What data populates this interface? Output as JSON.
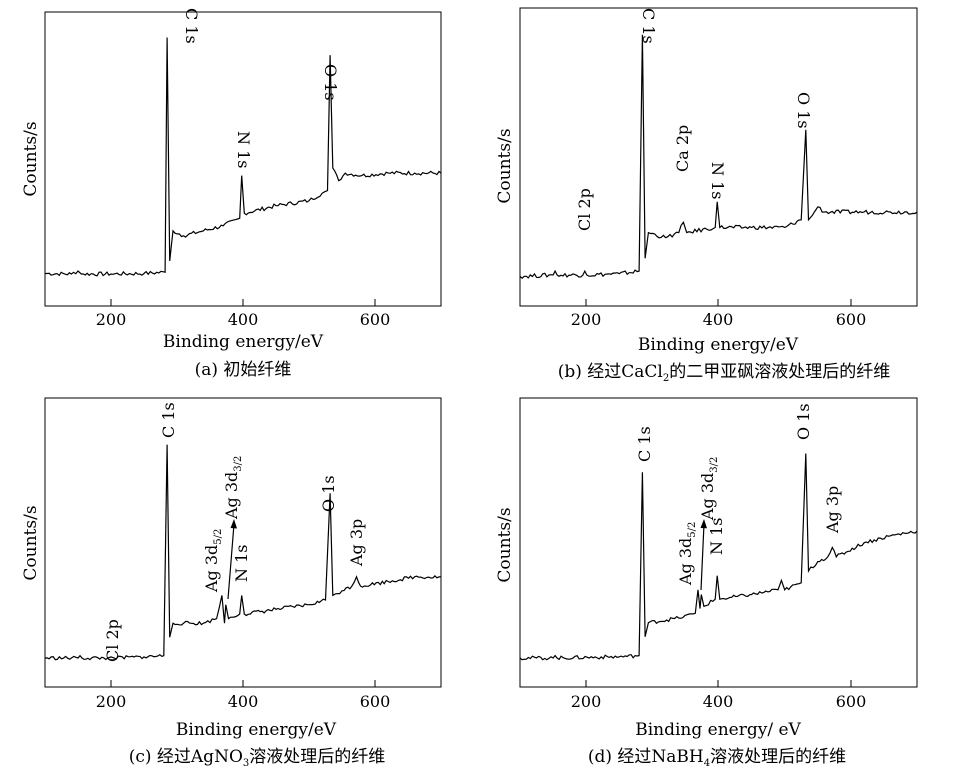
{
  "chart_data": [
    {
      "id": "a",
      "type": "line",
      "caption": "(a) 初始纤维",
      "xlabel": "Binding energy/eV",
      "ylabel": "Counts/s",
      "xlim": [
        100,
        700
      ],
      "ylim": [
        0,
        100
      ],
      "x_ticks": [
        200,
        400,
        600
      ],
      "x_tick_labels": [
        "200",
        "400",
        "600"
      ],
      "series": [
        {
          "points": [
            [
              100,
              3
            ],
            [
              140,
              2.8
            ],
            [
              150,
              4
            ],
            [
              155,
              2.8
            ],
            [
              200,
              2.8
            ],
            [
              250,
              3
            ],
            [
              282,
              3.5
            ],
            [
              285,
              97
            ],
            [
              289,
              8
            ],
            [
              294,
              20
            ],
            [
              310,
              18
            ],
            [
              340,
              20
            ],
            [
              370,
              22
            ],
            [
              395,
              25
            ],
            [
              398,
              42
            ],
            [
              402,
              27
            ],
            [
              450,
              30
            ],
            [
              500,
              32
            ],
            [
              520,
              35
            ],
            [
              528,
              36
            ],
            [
              532,
              90
            ],
            [
              536,
              45
            ],
            [
              545,
              40
            ],
            [
              555,
              43
            ],
            [
              580,
              42
            ],
            [
              620,
              43
            ],
            [
              660,
              43
            ],
            [
              700,
              43
            ]
          ]
        }
      ],
      "peaks": [
        {
          "x": 285,
          "y": 97,
          "label": "C 1s"
        },
        {
          "x": 398,
          "y": 42,
          "label": "N 1s"
        },
        {
          "x": 532,
          "y": 90,
          "label": "O 1s"
        }
      ]
    },
    {
      "id": "b",
      "type": "line",
      "caption_prefix": "(b) 经过CaCl",
      "caption_sub": "2",
      "caption_suffix": "的二甲亚砜溶液处理后的纤维",
      "xlabel": "Binding energy/eV",
      "ylabel": "Counts/s",
      "xlim": [
        100,
        700
      ],
      "ylim": [
        0,
        100
      ],
      "x_ticks": [
        200,
        400,
        600
      ],
      "x_tick_labels": [
        "200",
        "400",
        "600"
      ],
      "series": [
        {
          "points": [
            [
              100,
              3
            ],
            [
              150,
              3.5
            ],
            [
              153,
              5
            ],
            [
              156,
              3.5
            ],
            [
              195,
              3.5
            ],
            [
              198,
              5
            ],
            [
              201,
              3.5
            ],
            [
              250,
              4
            ],
            [
              280,
              5
            ],
            [
              285,
              97
            ],
            [
              289,
              10
            ],
            [
              294,
              20
            ],
            [
              320,
              18
            ],
            [
              340,
              20
            ],
            [
              347,
              24
            ],
            [
              352,
              20
            ],
            [
              395,
              22
            ],
            [
              398,
              32
            ],
            [
              402,
              22
            ],
            [
              450,
              22
            ],
            [
              500,
              22
            ],
            [
              525,
              25
            ],
            [
              532,
              60
            ],
            [
              536,
              25
            ],
            [
              545,
              28
            ],
            [
              550,
              30
            ],
            [
              560,
              28
            ],
            [
              620,
              28
            ],
            [
              660,
              28
            ],
            [
              700,
              28
            ]
          ]
        }
      ],
      "peaks": [
        {
          "x": 198,
          "y": 5,
          "label": "Cl 2p"
        },
        {
          "x": 285,
          "y": 97,
          "label": "C 1s"
        },
        {
          "x": 347,
          "y": 24,
          "label": "Ca 2p"
        },
        {
          "x": 398,
          "y": 32,
          "label": "N 1s"
        },
        {
          "x": 532,
          "y": 60,
          "label": "O 1s"
        }
      ]
    },
    {
      "id": "c",
      "type": "line",
      "caption_prefix": "(c) 经过AgNO",
      "caption_sub": "3",
      "caption_suffix": "溶液处理后的纤维",
      "xlabel": "Binding energy/eV",
      "ylabel": "Counts/s",
      "xlim": [
        100,
        700
      ],
      "ylim": [
        0,
        100
      ],
      "x_ticks": [
        200,
        400,
        600
      ],
      "x_tick_labels": [
        "200",
        "400",
        "600"
      ],
      "series": [
        {
          "points": [
            [
              100,
              3
            ],
            [
              150,
              3
            ],
            [
              153,
              4
            ],
            [
              156,
              3
            ],
            [
              195,
              3
            ],
            [
              200,
              3.5
            ],
            [
              205,
              3
            ],
            [
              250,
              3.5
            ],
            [
              280,
              4
            ],
            [
              285,
              95
            ],
            [
              289,
              12
            ],
            [
              294,
              18
            ],
            [
              310,
              18
            ],
            [
              340,
              18
            ],
            [
              360,
              20
            ],
            [
              368,
              30
            ],
            [
              372,
              18
            ],
            [
              374,
              26
            ],
            [
              378,
              20
            ],
            [
              395,
              22
            ],
            [
              398,
              30
            ],
            [
              402,
              22
            ],
            [
              450,
              24
            ],
            [
              500,
              26
            ],
            [
              525,
              28
            ],
            [
              532,
              74
            ],
            [
              536,
              30
            ],
            [
              550,
              32
            ],
            [
              565,
              34
            ],
            [
              572,
              38
            ],
            [
              578,
              34
            ],
            [
              620,
              36
            ],
            [
              660,
              38
            ],
            [
              700,
              38
            ]
          ]
        }
      ],
      "peaks": [
        {
          "x": 200,
          "y": 3.5,
          "label": "Cl 2p"
        },
        {
          "x": 285,
          "y": 95,
          "label": "C 1s"
        },
        {
          "x": 368,
          "y": 30,
          "label": "Ag 3d",
          "label_sub": "5/2"
        },
        {
          "x": 374,
          "y": 26,
          "label": "Ag 3d",
          "label_sub": "3/2"
        },
        {
          "x": 398,
          "y": 30,
          "label": "N 1s"
        },
        {
          "x": 532,
          "y": 74,
          "label": "O 1s"
        },
        {
          "x": 572,
          "y": 38,
          "label": "Ag 3p"
        }
      ]
    },
    {
      "id": "d",
      "type": "line",
      "caption_prefix": "(d) 经过NaBH",
      "caption_sub": "4",
      "caption_suffix": "溶液处理后的纤维",
      "xlabel": "Binding energy/ eV",
      "ylabel": "Counts/s",
      "xlim": [
        100,
        700
      ],
      "ylim": [
        0,
        100
      ],
      "x_ticks": [
        200,
        400,
        600
      ],
      "x_tick_labels": [
        "200",
        "400",
        "600"
      ],
      "series": [
        {
          "points": [
            [
              100,
              3
            ],
            [
              150,
              3
            ],
            [
              153,
              4
            ],
            [
              156,
              3
            ],
            [
              250,
              3.5
            ],
            [
              280,
              4
            ],
            [
              285,
              82
            ],
            [
              289,
              12
            ],
            [
              294,
              18
            ],
            [
              340,
              20
            ],
            [
              365,
              22
            ],
            [
              369,
              32
            ],
            [
              372,
              24
            ],
            [
              374,
              30
            ],
            [
              378,
              25
            ],
            [
              395,
              28
            ],
            [
              398,
              38
            ],
            [
              402,
              28
            ],
            [
              450,
              30
            ],
            [
              490,
              32
            ],
            [
              495,
              36
            ],
            [
              500,
              32
            ],
            [
              525,
              35
            ],
            [
              532,
              90
            ],
            [
              536,
              40
            ],
            [
              550,
              44
            ],
            [
              565,
              46
            ],
            [
              572,
              50
            ],
            [
              578,
              46
            ],
            [
              620,
              52
            ],
            [
              660,
              55
            ],
            [
              700,
              57
            ]
          ]
        }
      ],
      "peaks": [
        {
          "x": 285,
          "y": 82,
          "label": "C 1s"
        },
        {
          "x": 369,
          "y": 32,
          "label": "Ag 3d",
          "label_sub": "5/2"
        },
        {
          "x": 374,
          "y": 30,
          "label": "Ag 3d",
          "label_sub": "3/2"
        },
        {
          "x": 398,
          "y": 38,
          "label": "N 1s"
        },
        {
          "x": 532,
          "y": 90,
          "label": "O 1s"
        },
        {
          "x": 572,
          "y": 50,
          "label": "Ag 3p"
        }
      ]
    }
  ]
}
